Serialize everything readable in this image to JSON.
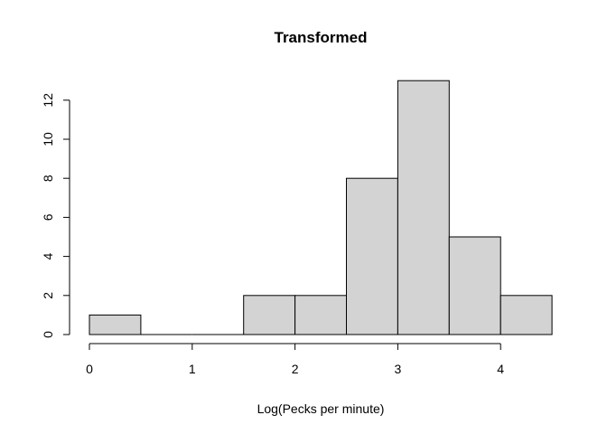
{
  "chart_data": {
    "type": "bar",
    "title": "Transformed",
    "xlabel": "Log(Pecks per minute)",
    "ylabel": "",
    "bins": [
      {
        "x0": 0.0,
        "x1": 0.5,
        "count": 1
      },
      {
        "x0": 0.5,
        "x1": 1.0,
        "count": 0
      },
      {
        "x0": 1.0,
        "x1": 1.5,
        "count": 0
      },
      {
        "x0": 1.5,
        "x1": 2.0,
        "count": 2
      },
      {
        "x0": 2.0,
        "x1": 2.5,
        "count": 2
      },
      {
        "x0": 2.5,
        "x1": 3.0,
        "count": 8
      },
      {
        "x0": 3.0,
        "x1": 3.5,
        "count": 13
      },
      {
        "x0": 3.5,
        "x1": 4.0,
        "count": 5
      },
      {
        "x0": 4.0,
        "x1": 4.5,
        "count": 2
      }
    ],
    "xticks": [
      "0",
      "1",
      "2",
      "3",
      "4"
    ],
    "yticks": [
      "0",
      "2",
      "4",
      "6",
      "8",
      "10",
      "12"
    ],
    "xlim": [
      0,
      4.5
    ],
    "ylim": [
      0,
      13
    ],
    "grid": false,
    "bar_color": "#d3d3d3",
    "edge_color": "#000000"
  }
}
